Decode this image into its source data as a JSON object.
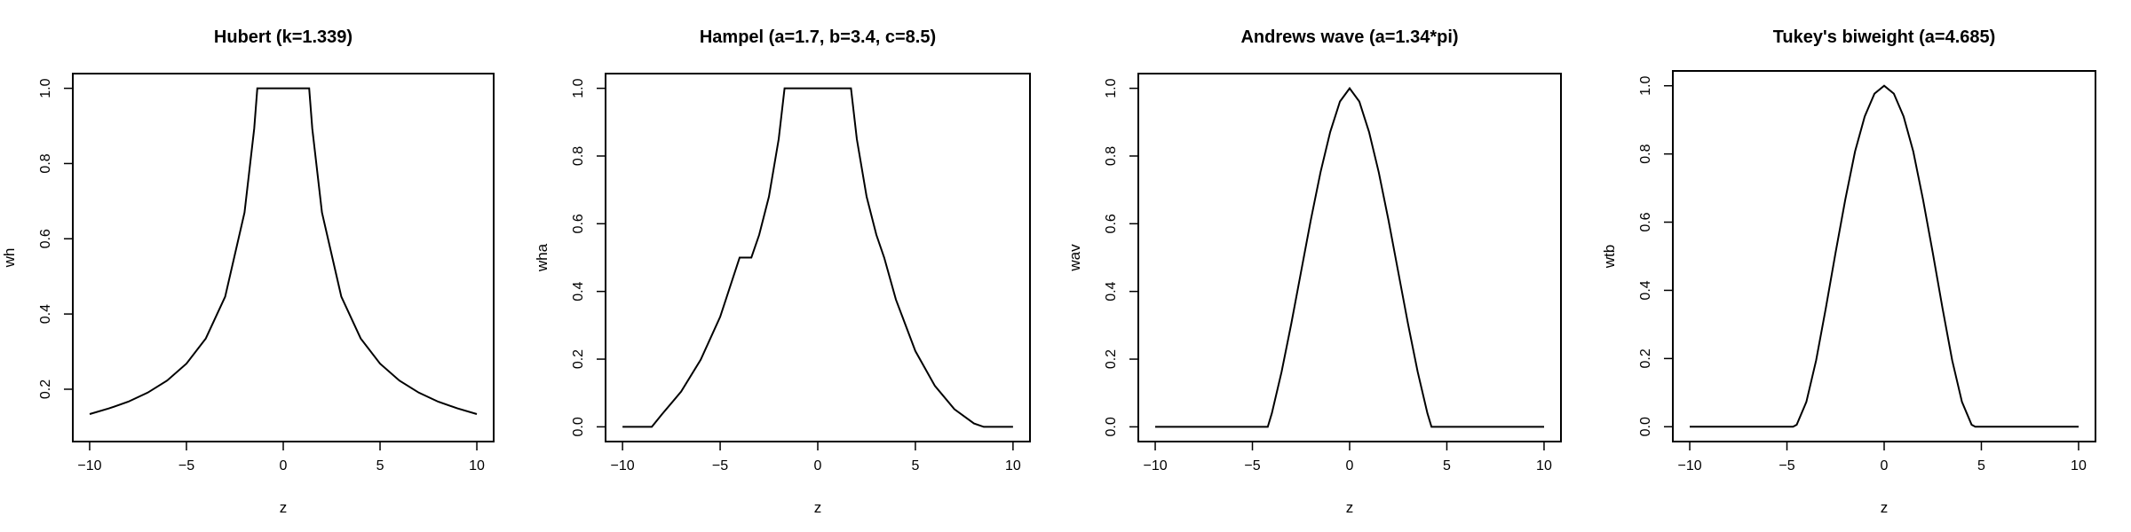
{
  "chart_data": [
    {
      "type": "line",
      "title": "Hubert (k=1.339)",
      "xlabel": "z",
      "ylabel": "wh",
      "xlim": [
        -10,
        10
      ],
      "ylim": [
        0.1,
        1.0
      ],
      "xticks": [
        -10,
        -5,
        0,
        5,
        10
      ],
      "yticks": [
        0.2,
        0.4,
        0.6,
        0.8,
        1.0
      ],
      "ytick_labels": [
        "0.2",
        "0.4",
        "0.6",
        "0.8",
        "1.0"
      ],
      "grid": false,
      "series": [
        {
          "x": [
            -10,
            -9,
            -8,
            -7,
            -6,
            -5,
            -4,
            -3,
            -2,
            -1.5,
            -1.339,
            -1,
            0,
            1,
            1.339,
            1.5,
            2,
            3,
            4,
            5,
            6,
            7,
            8,
            9,
            10
          ],
          "y": [
            0.134,
            0.149,
            0.167,
            0.191,
            0.223,
            0.268,
            0.335,
            0.446,
            0.67,
            0.893,
            1.0,
            1.0,
            1.0,
            1.0,
            1.0,
            0.893,
            0.67,
            0.446,
            0.335,
            0.268,
            0.223,
            0.191,
            0.167,
            0.149,
            0.134
          ]
        }
      ]
    },
    {
      "type": "line",
      "title": "Hampel (a=1.7, b=3.4, c=8.5)",
      "xlabel": "z",
      "ylabel": "wha",
      "xlim": [
        -10,
        10
      ],
      "ylim": [
        0.0,
        1.0
      ],
      "xticks": [
        -10,
        -5,
        0,
        5,
        10
      ],
      "yticks": [
        0.0,
        0.2,
        0.4,
        0.6,
        0.8,
        1.0
      ],
      "ytick_labels": [
        "0.0",
        "0.2",
        "0.4",
        "0.6",
        "0.8",
        "1.0"
      ],
      "grid": false,
      "series": [
        {
          "x": [
            -10,
            -8.5,
            -8,
            -7,
            -6,
            -5,
            -4,
            -3.4,
            -3,
            -2.5,
            -2,
            -1.7,
            0,
            1.7,
            2,
            2.5,
            3,
            3.4,
            4,
            5,
            6,
            7,
            8,
            8.5,
            10
          ],
          "y": [
            0.0,
            0.0,
            0.036,
            0.104,
            0.198,
            0.325,
            0.5,
            0.5,
            0.567,
            0.68,
            0.85,
            1.0,
            1.0,
            1.0,
            0.85,
            0.68,
            0.567,
            0.5,
            0.376,
            0.224,
            0.121,
            0.052,
            0.01,
            0.0,
            0.0
          ]
        }
      ]
    },
    {
      "type": "line",
      "title": "Andrews wave (a=1.34*pi)",
      "xlabel": "z",
      "ylabel": "wav",
      "xlim": [
        -10,
        10
      ],
      "ylim": [
        0.0,
        1.0
      ],
      "xticks": [
        -10,
        -5,
        0,
        5,
        10
      ],
      "yticks": [
        0.0,
        0.2,
        0.4,
        0.6,
        0.8,
        1.0
      ],
      "ytick_labels": [
        "0.0",
        "0.2",
        "0.4",
        "0.6",
        "0.8",
        "1.0"
      ],
      "grid": false,
      "series": [
        {
          "x": [
            -10,
            -4.21,
            -4,
            -3.5,
            -3,
            -2.5,
            -2,
            -1.5,
            -1,
            -0.5,
            0,
            0.5,
            1,
            1.5,
            2,
            2.5,
            3,
            3.5,
            4,
            4.21,
            10
          ],
          "y": [
            0.0,
            0.0,
            0.04,
            0.163,
            0.305,
            0.458,
            0.61,
            0.752,
            0.871,
            0.961,
            1.0,
            0.961,
            0.871,
            0.752,
            0.61,
            0.458,
            0.305,
            0.163,
            0.04,
            0.0,
            0.0
          ]
        }
      ]
    },
    {
      "type": "line",
      "title": "Tukey's biweight (a=4.685)",
      "xlabel": "z",
      "ylabel": "wtb",
      "xlim": [
        -10,
        10
      ],
      "ylim": [
        0.0,
        1.0
      ],
      "xticks": [
        -10,
        -5,
        0,
        5,
        10
      ],
      "yticks": [
        0.0,
        0.2,
        0.4,
        0.6,
        0.8,
        1.0
      ],
      "ytick_labels": [
        "0.0",
        "0.2",
        "0.4",
        "0.6",
        "0.8",
        "1.0"
      ],
      "grid": false,
      "series": [
        {
          "x": [
            -10,
            -4.685,
            -4.5,
            -4,
            -3.5,
            -3,
            -2.5,
            -2,
            -1.5,
            -1,
            -0.5,
            0,
            0.5,
            1,
            1.5,
            2,
            2.5,
            3,
            3.5,
            4,
            4.5,
            4.685,
            10
          ],
          "y": [
            0.0,
            0.0,
            0.006,
            0.073,
            0.195,
            0.348,
            0.511,
            0.666,
            0.807,
            0.91,
            0.977,
            1.0,
            0.977,
            0.91,
            0.807,
            0.666,
            0.511,
            0.348,
            0.195,
            0.073,
            0.006,
            0.0,
            0.0
          ]
        }
      ]
    }
  ]
}
